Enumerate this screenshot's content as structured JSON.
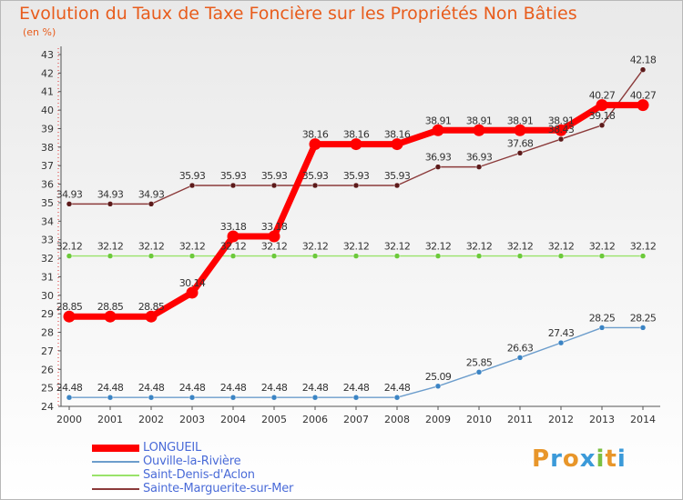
{
  "chart_data": {
    "type": "line",
    "title": "Evolution du Taux de Taxe Foncière sur les Propriétés Non Bâties",
    "ylabel": "(en %)",
    "xlabel": "",
    "ylim": [
      24,
      43
    ],
    "grid": false,
    "legend_position": "bottom-left",
    "categories": [
      "2000",
      "2001",
      "2002",
      "2003",
      "2004",
      "2005",
      "2006",
      "2007",
      "2008",
      "2009",
      "2010",
      "2011",
      "2012",
      "2013",
      "2014"
    ],
    "y_ticks": [
      24,
      25,
      26,
      27,
      28,
      29,
      30,
      31,
      32,
      33,
      34,
      35,
      36,
      37,
      38,
      39,
      40,
      41,
      42,
      43
    ],
    "series": [
      {
        "name": "LONGUEIL",
        "color": "#ff0000",
        "marker_color": "#ff0000",
        "width": 7,
        "values": [
          28.85,
          28.85,
          28.85,
          30.14,
          33.18,
          33.18,
          38.16,
          38.16,
          38.16,
          38.91,
          38.91,
          38.91,
          38.91,
          40.27,
          40.27
        ]
      },
      {
        "name": "Ouville-la-Rivière",
        "color": "#6c9dcc",
        "marker_color": "#3b84c4",
        "width": 1.4,
        "values": [
          24.48,
          24.48,
          24.48,
          24.48,
          24.48,
          24.48,
          24.48,
          24.48,
          24.48,
          25.09,
          25.85,
          26.63,
          27.43,
          28.25,
          28.25
        ]
      },
      {
        "name": "Saint-Denis-d'Aclon",
        "color": "#99e36a",
        "marker_color": "#6cc93b",
        "width": 1.4,
        "values": [
          32.12,
          32.12,
          32.12,
          32.12,
          32.12,
          32.12,
          32.12,
          32.12,
          32.12,
          32.12,
          32.12,
          32.12,
          32.12,
          32.12,
          32.12
        ]
      },
      {
        "name": "Sainte-Marguerite-sur-Mer",
        "color": "#8b3a3a",
        "marker_color": "#5c1a1a",
        "width": 1.4,
        "values": [
          34.93,
          34.93,
          34.93,
          35.93,
          35.93,
          35.93,
          35.93,
          35.93,
          35.93,
          36.93,
          36.93,
          37.68,
          38.43,
          39.18,
          42.18
        ]
      }
    ],
    "data_labels": [
      [
        "28.85",
        "28.85",
        "28.85",
        "30.14",
        "33.18",
        "33.18",
        "38.16",
        "38.16",
        "38.16",
        "38.91",
        "38.91",
        "38.91",
        "38.91",
        "40.27",
        "40.27"
      ],
      [
        "24.48",
        "24.48",
        "24.48",
        "24.48",
        "24.48",
        "24.48",
        "24.48",
        "24.48",
        "24.48",
        "25.09",
        "25.85",
        "26.63",
        "27.43",
        "28.25",
        "28.25"
      ],
      [
        "32.12",
        "32.12",
        "32.12",
        "32.12",
        "32.12",
        "32.12",
        "32.12",
        "32.12",
        "32.12",
        "32.12",
        "32.12",
        "32.12",
        "32.12",
        "32.12",
        "32.12"
      ],
      [
        "34.93",
        "34.93",
        "34.93",
        "35.93",
        "35.93",
        "35.93",
        "35.93",
        "35.93",
        "35.93",
        "36.93",
        "36.93",
        "37.68",
        "38.43",
        "39.18",
        "42.18"
      ]
    ]
  },
  "logo": {
    "letters": [
      "P",
      "r",
      "o",
      "x",
      "i",
      "t",
      "i"
    ],
    "colors": [
      "#e8962a",
      "#3b9ad9",
      "#e8962a",
      "#3b9ad9",
      "#7bc043",
      "#e8962a",
      "#3b9ad9"
    ]
  }
}
